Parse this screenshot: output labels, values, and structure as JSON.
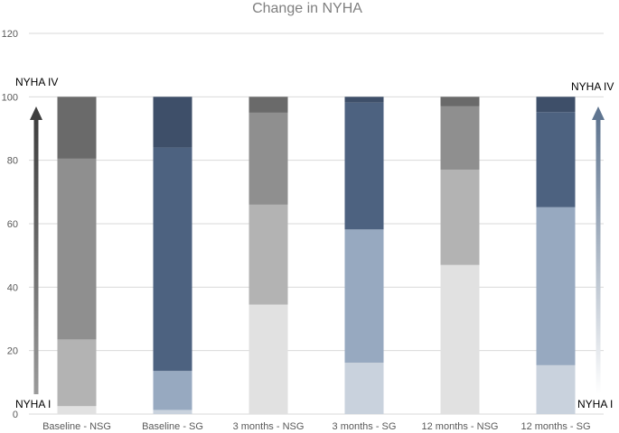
{
  "chart_data": {
    "type": "bar",
    "stacked": true,
    "title": "Change in NYHA",
    "xlabel": "",
    "ylabel": "",
    "ylim": [
      0,
      120
    ],
    "yticks": [
      0,
      20,
      40,
      60,
      80,
      100,
      120
    ],
    "grid": true,
    "categories": [
      "Baseline - NSG",
      "Baseline - SG",
      "3 months - NSG",
      "3 months - SG",
      "12 months - NSG",
      "12 months - SG"
    ],
    "group": [
      "NSG",
      "SG",
      "NSG",
      "SG",
      "NSG",
      "SG"
    ],
    "series": [
      {
        "values": [
          2.5,
          1.3,
          34.5,
          16.2,
          47.0,
          15.4
        ]
      },
      {
        "values": [
          21.0,
          12.3,
          31.5,
          42.0,
          30.0,
          49.8
        ]
      },
      {
        "values": [
          57.0,
          70.4,
          29.0,
          40.0,
          20.0,
          30.0
        ]
      },
      {
        "values": [
          19.5,
          16.0,
          5.0,
          1.8,
          3.0,
          4.8
        ]
      }
    ],
    "colors": {
      "NSG": [
        "#e1e1e1",
        "#b3b3b3",
        "#8f8f8f",
        "#6a6a6a"
      ],
      "SG": [
        "#c9d2dd",
        "#97a9c0",
        "#4d6280",
        "#3e4f69"
      ]
    },
    "annotations": {
      "left_top": "NYHA IV",
      "left_bottom": "NYHA I",
      "right_top": "NYHA IV",
      "right_bottom": "NYHA I"
    },
    "arrow_colors": {
      "left": "#3f3f3f",
      "right": "#5f7590"
    }
  }
}
